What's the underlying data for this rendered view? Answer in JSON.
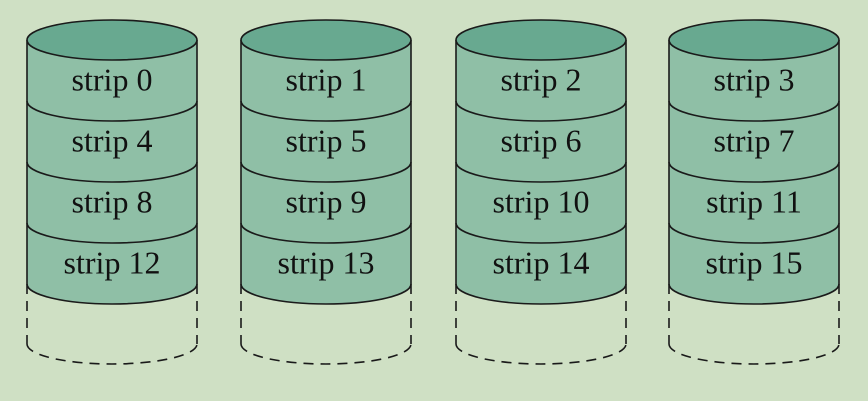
{
  "colors": {
    "background": "#cfe0c4",
    "strip_fill": "#8fbfa6",
    "top_cap_fill": "#68a990",
    "outline": "#1a1a1a"
  },
  "disks": [
    {
      "strips": [
        {
          "label": "strip 0"
        },
        {
          "label": "strip 4"
        },
        {
          "label": "strip 8"
        },
        {
          "label": "strip 12"
        }
      ]
    },
    {
      "strips": [
        {
          "label": "strip 1"
        },
        {
          "label": "strip 5"
        },
        {
          "label": "strip 9"
        },
        {
          "label": "strip 13"
        }
      ]
    },
    {
      "strips": [
        {
          "label": "strip 2"
        },
        {
          "label": "strip 6"
        },
        {
          "label": "strip 10"
        },
        {
          "label": "strip 14"
        }
      ]
    },
    {
      "strips": [
        {
          "label": "strip 3"
        },
        {
          "label": "strip 7"
        },
        {
          "label": "strip 11"
        },
        {
          "label": "strip 15"
        }
      ]
    }
  ]
}
